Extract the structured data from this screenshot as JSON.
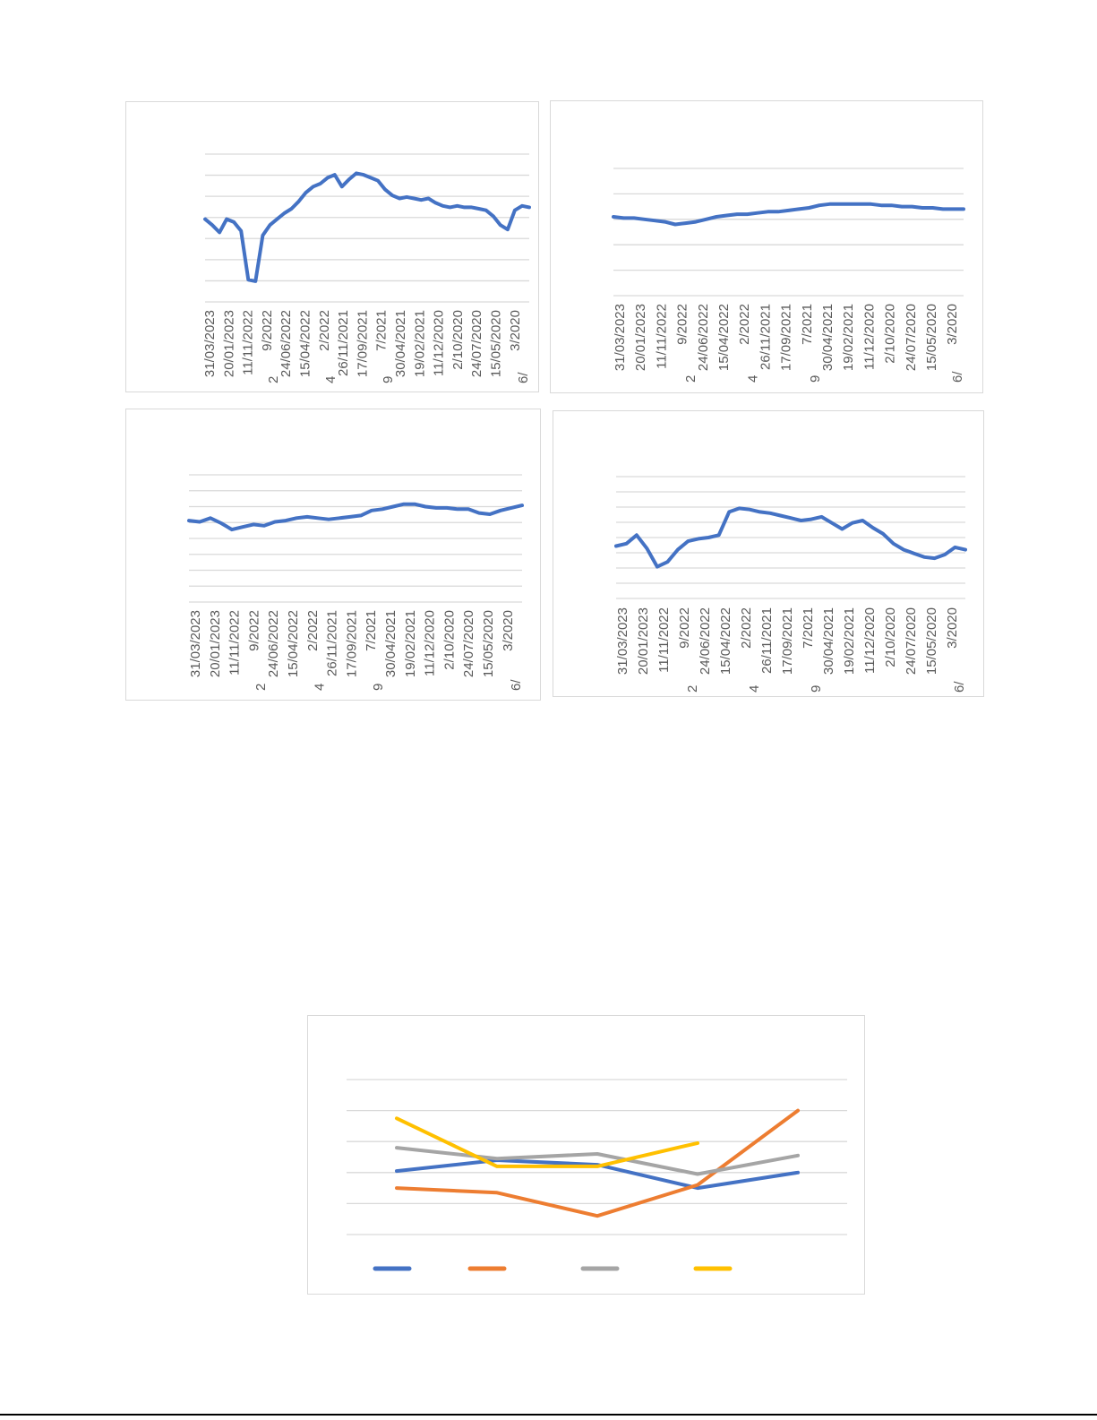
{
  "mini_date_ticks": [
    "31/03/2023",
    "20/01/2023",
    "11/11/2022",
    "9/2022",
    "24/06/2022",
    "15/04/2022",
    "2/2022",
    "26/11/2021",
    "17/09/2021",
    "7/2021",
    "30/04/2021",
    "19/02/2021",
    "11/12/2020",
    "2/10/2020",
    "24/07/2020",
    "15/05/2020",
    "3/2020"
  ],
  "mini_fragments": [
    "2",
    "4",
    "9",
    "6/"
  ],
  "colors": {
    "line_blue": "#4472c4",
    "orange": "#ed7d31",
    "gray": "#a5a5a5",
    "yellow": "#ffc000",
    "grid": "#d9d9d9"
  },
  "chart_data": [
    {
      "type": "line",
      "series": [
        {
          "values": [
            0.56,
            0.52,
            0.47,
            0.56,
            0.54,
            0.48,
            0.15,
            0.14,
            0.45,
            0.52,
            0.56,
            0.6,
            0.63,
            0.68,
            0.74,
            0.78,
            0.8,
            0.84,
            0.86,
            0.78,
            0.83,
            0.87,
            0.86,
            0.84,
            0.82,
            0.76,
            0.72,
            0.7,
            0.71,
            0.7,
            0.69,
            0.7,
            0.67,
            0.65,
            0.64,
            0.65,
            0.64,
            0.64,
            0.63,
            0.62,
            0.58,
            0.52,
            0.49,
            0.62,
            0.65,
            0.64
          ]
        }
      ],
      "ylim": [
        0,
        1
      ],
      "grid": true
    },
    {
      "type": "line",
      "series": [
        {
          "values": [
            0.62,
            0.61,
            0.61,
            0.6,
            0.59,
            0.58,
            0.56,
            0.57,
            0.58,
            0.6,
            0.62,
            0.63,
            0.64,
            0.64,
            0.65,
            0.66,
            0.66,
            0.67,
            0.68,
            0.69,
            0.71,
            0.72,
            0.72,
            0.72,
            0.72,
            0.72,
            0.71,
            0.71,
            0.7,
            0.7,
            0.69,
            0.69,
            0.68,
            0.68,
            0.68
          ]
        }
      ],
      "ylim": [
        0,
        1
      ],
      "grid": true
    },
    {
      "type": "line",
      "series": [
        {
          "values": [
            0.64,
            0.63,
            0.66,
            0.62,
            0.57,
            0.59,
            0.61,
            0.6,
            0.63,
            0.64,
            0.66,
            0.67,
            0.66,
            0.65,
            0.66,
            0.67,
            0.68,
            0.72,
            0.73,
            0.75,
            0.77,
            0.77,
            0.75,
            0.74,
            0.74,
            0.73,
            0.73,
            0.7,
            0.69,
            0.72,
            0.74,
            0.76
          ]
        }
      ],
      "ylim": [
        0,
        1
      ],
      "grid": true
    },
    {
      "type": "line",
      "series": [
        {
          "values": [
            0.43,
            0.45,
            0.52,
            0.41,
            0.26,
            0.3,
            0.4,
            0.47,
            0.49,
            0.5,
            0.52,
            0.71,
            0.74,
            0.73,
            0.71,
            0.7,
            0.68,
            0.66,
            0.64,
            0.65,
            0.67,
            0.62,
            0.57,
            0.62,
            0.64,
            0.58,
            0.53,
            0.45,
            0.4,
            0.37,
            0.34,
            0.33,
            0.36,
            0.42,
            0.4
          ]
        }
      ],
      "ylim": [
        0,
        1
      ],
      "grid": true
    },
    {
      "type": "line",
      "x": [
        0,
        1,
        2,
        3,
        4
      ],
      "series": [
        {
          "color": "#4472c4",
          "values": [
            2.05,
            2.4,
            2.25,
            1.5,
            2.0
          ]
        },
        {
          "color": "#ed7d31",
          "values": [
            1.5,
            1.35,
            0.6,
            1.6,
            4.0
          ]
        },
        {
          "color": "#a5a5a5",
          "values": [
            2.8,
            2.45,
            2.6,
            1.95,
            2.55
          ]
        },
        {
          "color": "#ffc000",
          "values": [
            3.75,
            2.2,
            2.2,
            2.95,
            null
          ]
        }
      ],
      "ylim": [
        0,
        5
      ],
      "grid": true,
      "legend": "bottom"
    }
  ]
}
